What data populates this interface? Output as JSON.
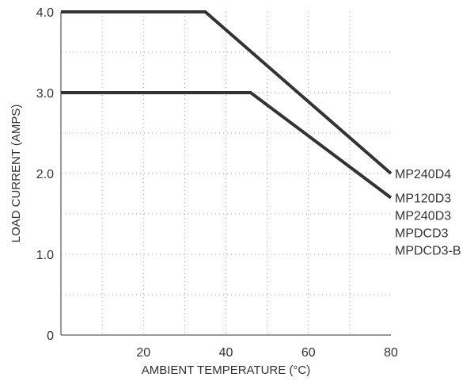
{
  "chart_data": {
    "type": "line",
    "title": "",
    "xlabel": "AMBIENT TEMPERATURE (°C)",
    "ylabel": "LOAD CURRENT (AMPS)",
    "xlim": [
      0,
      80
    ],
    "ylim": [
      0,
      4
    ],
    "x_ticks": [
      {
        "value": 20,
        "label": "20"
      },
      {
        "value": 40,
        "label": "40"
      },
      {
        "value": 60,
        "label": "60"
      },
      {
        "value": 80,
        "label": "80"
      }
    ],
    "y_ticks": [
      {
        "value": 0,
        "label": "0"
      },
      {
        "value": 1,
        "label": "1.0"
      },
      {
        "value": 2,
        "label": "2.0"
      },
      {
        "value": 3,
        "label": "3.0"
      },
      {
        "value": 4,
        "label": "4.0"
      }
    ],
    "x_grid": [
      10,
      20,
      30,
      40,
      50,
      60,
      70
    ],
    "y_grid": [
      0.5,
      1,
      1.5,
      2,
      2.5,
      3,
      3.5
    ],
    "grid": true,
    "series": [
      {
        "x": [
          0,
          35,
          80
        ],
        "y": [
          4.0,
          4.0,
          2.0
        ],
        "labels": [
          "MP240D4"
        ]
      },
      {
        "x": [
          0,
          46,
          80
        ],
        "y": [
          3.0,
          3.0,
          1.7
        ],
        "labels": [
          "MP120D3",
          "MP240D3",
          "MPDCD3",
          "MPDCD3-B"
        ]
      }
    ]
  }
}
